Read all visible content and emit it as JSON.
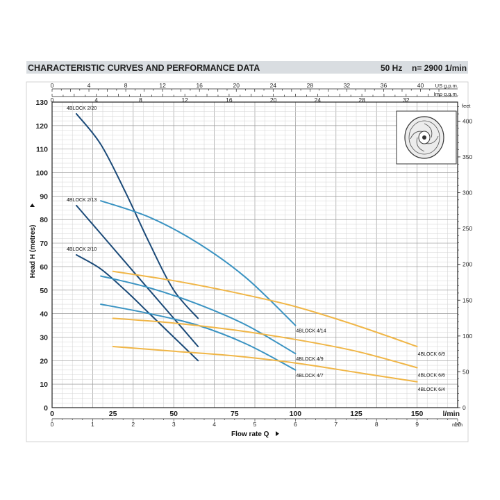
{
  "header": {
    "title": "CHARACTERISTIC CURVES AND PERFORMANCE DATA",
    "freq": "50 Hz",
    "speed": "n= 2900  1/min",
    "band_color": "#d9dde1"
  },
  "chart_data": {
    "type": "line",
    "title": "CHARACTERISTIC CURVES AND PERFORMANCE DATA",
    "xlabel": "Flow rate Q",
    "ylabel": "Head H (metres)",
    "xlim_m3h": [
      0,
      10
    ],
    "ylim_m": [
      0,
      130
    ],
    "grid": true,
    "axes": {
      "left_ticks": [
        "0",
        "10",
        "20",
        "30",
        "40",
        "50",
        "60",
        "70",
        "80",
        "90",
        "100",
        "110",
        "120",
        "130"
      ],
      "right_ticks": [
        "0",
        "50",
        "100",
        "150",
        "200",
        "250",
        "300",
        "350",
        "400"
      ],
      "right_unit": "feet",
      "top_us_ticks": [
        "0",
        "4",
        "8",
        "12",
        "16",
        "20",
        "24",
        "28",
        "32",
        "36",
        "40"
      ],
      "top_us_unit": "US g.p.m.",
      "top_imp_ticks": [
        "0",
        "4",
        "8",
        "12",
        "16",
        "20",
        "24",
        "28",
        "32"
      ],
      "top_imp_unit": "Imp g.p.m.",
      "bottom_lmin_ticks": [
        "0",
        "25",
        "50",
        "75",
        "100",
        "125",
        "150"
      ],
      "bottom_lmin_unit": "l/min",
      "bottom_m3h_ticks": [
        "0",
        "1",
        "2",
        "3",
        "4",
        "5",
        "6",
        "7",
        "8",
        "9",
        "10"
      ],
      "bottom_m3h_unit": "m³/h"
    },
    "series": [
      {
        "name": "4BLOCK 2/20",
        "color": "#1b4a78",
        "x_lmin": [
          10,
          20,
          30,
          40,
          50,
          60
        ],
        "y": [
          125,
          112,
          92,
          70,
          50,
          38
        ]
      },
      {
        "name": "4BLOCK 2/13",
        "color": "#1b4a78",
        "x_lmin": [
          10,
          20,
          30,
          40,
          50,
          60
        ],
        "y": [
          86,
          74,
          62,
          50,
          38,
          26
        ]
      },
      {
        "name": "4BLOCK 2/10",
        "color": "#1b4a78",
        "x_lmin": [
          10,
          20,
          30,
          40,
          50,
          60
        ],
        "y": [
          65,
          59,
          50,
          40,
          30,
          20
        ]
      },
      {
        "name": "4BLOCK 4/14",
        "color": "#3a93c2",
        "x_lmin": [
          20,
          40,
          60,
          80,
          100
        ],
        "y": [
          88,
          81,
          70,
          55,
          35
        ]
      },
      {
        "name": "4BLOCK 4/9",
        "color": "#3a93c2",
        "x_lmin": [
          20,
          40,
          60,
          80,
          100
        ],
        "y": [
          56,
          51,
          44,
          35,
          23
        ]
      },
      {
        "name": "4BLOCK 4/7",
        "color": "#3a93c2",
        "x_lmin": [
          20,
          40,
          60,
          80,
          100
        ],
        "y": [
          44,
          40,
          35,
          27,
          16
        ]
      },
      {
        "name": "4BLOCK 6/9",
        "color": "#f0b647",
        "x_lmin": [
          25,
          50,
          75,
          100,
          125,
          150
        ],
        "y": [
          58,
          54,
          49,
          43,
          35,
          26
        ]
      },
      {
        "name": "4BLOCK 6/6",
        "color": "#f0b647",
        "x_lmin": [
          25,
          50,
          75,
          100,
          125,
          150
        ],
        "y": [
          38,
          36,
          33,
          29,
          24,
          17
        ]
      },
      {
        "name": "4BLOCK 6/4",
        "color": "#f0b647",
        "x_lmin": [
          25,
          50,
          75,
          100,
          125,
          150
        ],
        "y": [
          26,
          24,
          22,
          19,
          15,
          11
        ]
      }
    ]
  }
}
